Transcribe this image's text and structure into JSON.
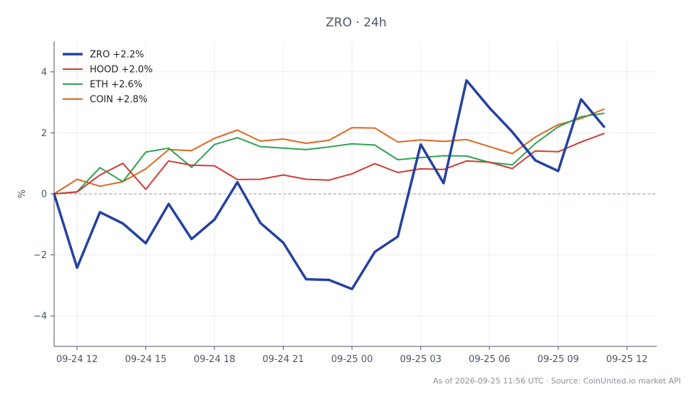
{
  "chart_data": {
    "type": "line",
    "title": "ZRO · 24h",
    "ylabel": "%",
    "xlabel": "",
    "ylim": [
      -5,
      5
    ],
    "yticks": [
      -4,
      -2,
      0,
      2,
      4
    ],
    "ytick_labels": [
      "−4",
      "−2",
      "0",
      "2",
      "4"
    ],
    "xlim_hours": [
      -1.0,
      25.3
    ],
    "xticks_hours": [
      0,
      3,
      6,
      9,
      12,
      15,
      18,
      21,
      24
    ],
    "xtick_labels": [
      "09-24 12",
      "09-24 15",
      "09-24 18",
      "09-24 21",
      "09-25 00",
      "09-25 03",
      "09-25 06",
      "09-25 09",
      "09-25 12"
    ],
    "x_hours": [
      -1,
      0,
      1,
      2,
      3,
      4,
      5,
      6,
      7,
      8,
      9,
      10,
      11,
      12,
      13,
      14,
      15,
      16,
      17,
      18,
      19,
      20,
      21,
      22,
      23
    ],
    "grid": true,
    "zero_line": true,
    "legend_position": "top-left",
    "series": [
      {
        "name": "ZRO +2.2%",
        "color": "#2541a0",
        "width": 3.5,
        "values": [
          0.0,
          -2.42,
          -0.6,
          -0.97,
          -1.62,
          -0.33,
          -1.48,
          -0.84,
          0.38,
          -0.95,
          -1.6,
          -2.8,
          -2.82,
          -3.12,
          -1.9,
          -1.4,
          1.62,
          0.35,
          3.72,
          2.82,
          2.03,
          1.1,
          0.75,
          3.1,
          2.2
        ]
      },
      {
        "name": "HOOD +2.0%",
        "color": "#d13c35",
        "width": 2,
        "values": [
          0.0,
          0.06,
          0.62,
          1.0,
          0.15,
          1.08,
          0.94,
          0.92,
          0.47,
          0.48,
          0.62,
          0.48,
          0.45,
          0.66,
          0.99,
          0.7,
          0.82,
          0.8,
          1.08,
          1.04,
          0.83,
          1.41,
          1.38,
          1.7,
          1.98
        ]
      },
      {
        "name": "ETH +2.6%",
        "color": "#2fa352",
        "width": 2,
        "values": [
          0.0,
          0.07,
          0.86,
          0.4,
          1.37,
          1.5,
          0.87,
          1.62,
          1.84,
          1.55,
          1.5,
          1.45,
          1.54,
          1.64,
          1.6,
          1.12,
          1.19,
          1.25,
          1.24,
          1.03,
          0.95,
          1.65,
          2.2,
          2.53,
          2.64
        ]
      },
      {
        "name": "COIN +2.8%",
        "color": "#e0661e",
        "width": 2,
        "values": [
          0.0,
          0.48,
          0.25,
          0.4,
          0.82,
          1.45,
          1.42,
          1.82,
          2.09,
          1.73,
          1.8,
          1.66,
          1.76,
          2.17,
          2.16,
          1.7,
          1.77,
          1.72,
          1.78,
          1.55,
          1.32,
          1.86,
          2.27,
          2.47,
          2.78
        ]
      }
    ],
    "footer": "As of 2026-09-25 11:56 UTC · Source: CoinUnited.io market API"
  }
}
